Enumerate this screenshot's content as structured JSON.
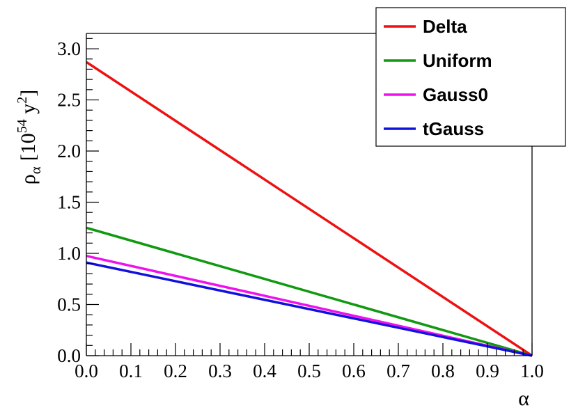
{
  "chart_data": {
    "type": "line",
    "xlabel": "α",
    "ylabel": {
      "base": "ρ",
      "sub": "α",
      "unit_open": "[10",
      "unit_exp": "54",
      "unit_mid": " y",
      "unit_exp2": "2",
      "unit_close": "]"
    },
    "xlim": [
      0,
      1
    ],
    "ylim": [
      0,
      3.15
    ],
    "x_ticks": [
      0.0,
      0.1,
      0.2,
      0.3,
      0.4,
      0.5,
      0.6,
      0.7,
      0.8,
      0.9,
      1.0
    ],
    "x_tick_labels": [
      "0.0",
      "0.1",
      "0.2",
      "0.3",
      "0.4",
      "0.5",
      "0.6",
      "0.7",
      "0.8",
      "0.9",
      "1.0"
    ],
    "y_ticks": [
      0.0,
      0.5,
      1.0,
      1.5,
      2.0,
      2.5,
      3.0
    ],
    "y_tick_labels": [
      "0.0",
      "0.5",
      "1.0",
      "1.5",
      "2.0",
      "2.5",
      "3.0"
    ],
    "grid": false,
    "legend_position": "top-right",
    "series": [
      {
        "name": "Delta",
        "color": "#ee1111",
        "x": [
          0,
          1
        ],
        "y": [
          2.87,
          0
        ]
      },
      {
        "name": "Uniform",
        "color": "#119911",
        "x": [
          0,
          1
        ],
        "y": [
          1.25,
          0
        ]
      },
      {
        "name": "Gauss0",
        "color": "#ee11ee",
        "x": [
          0,
          1
        ],
        "y": [
          0.975,
          0
        ]
      },
      {
        "name": "tGauss",
        "color": "#1111dd",
        "x": [
          0,
          1
        ],
        "y": [
          0.91,
          0
        ]
      }
    ]
  }
}
